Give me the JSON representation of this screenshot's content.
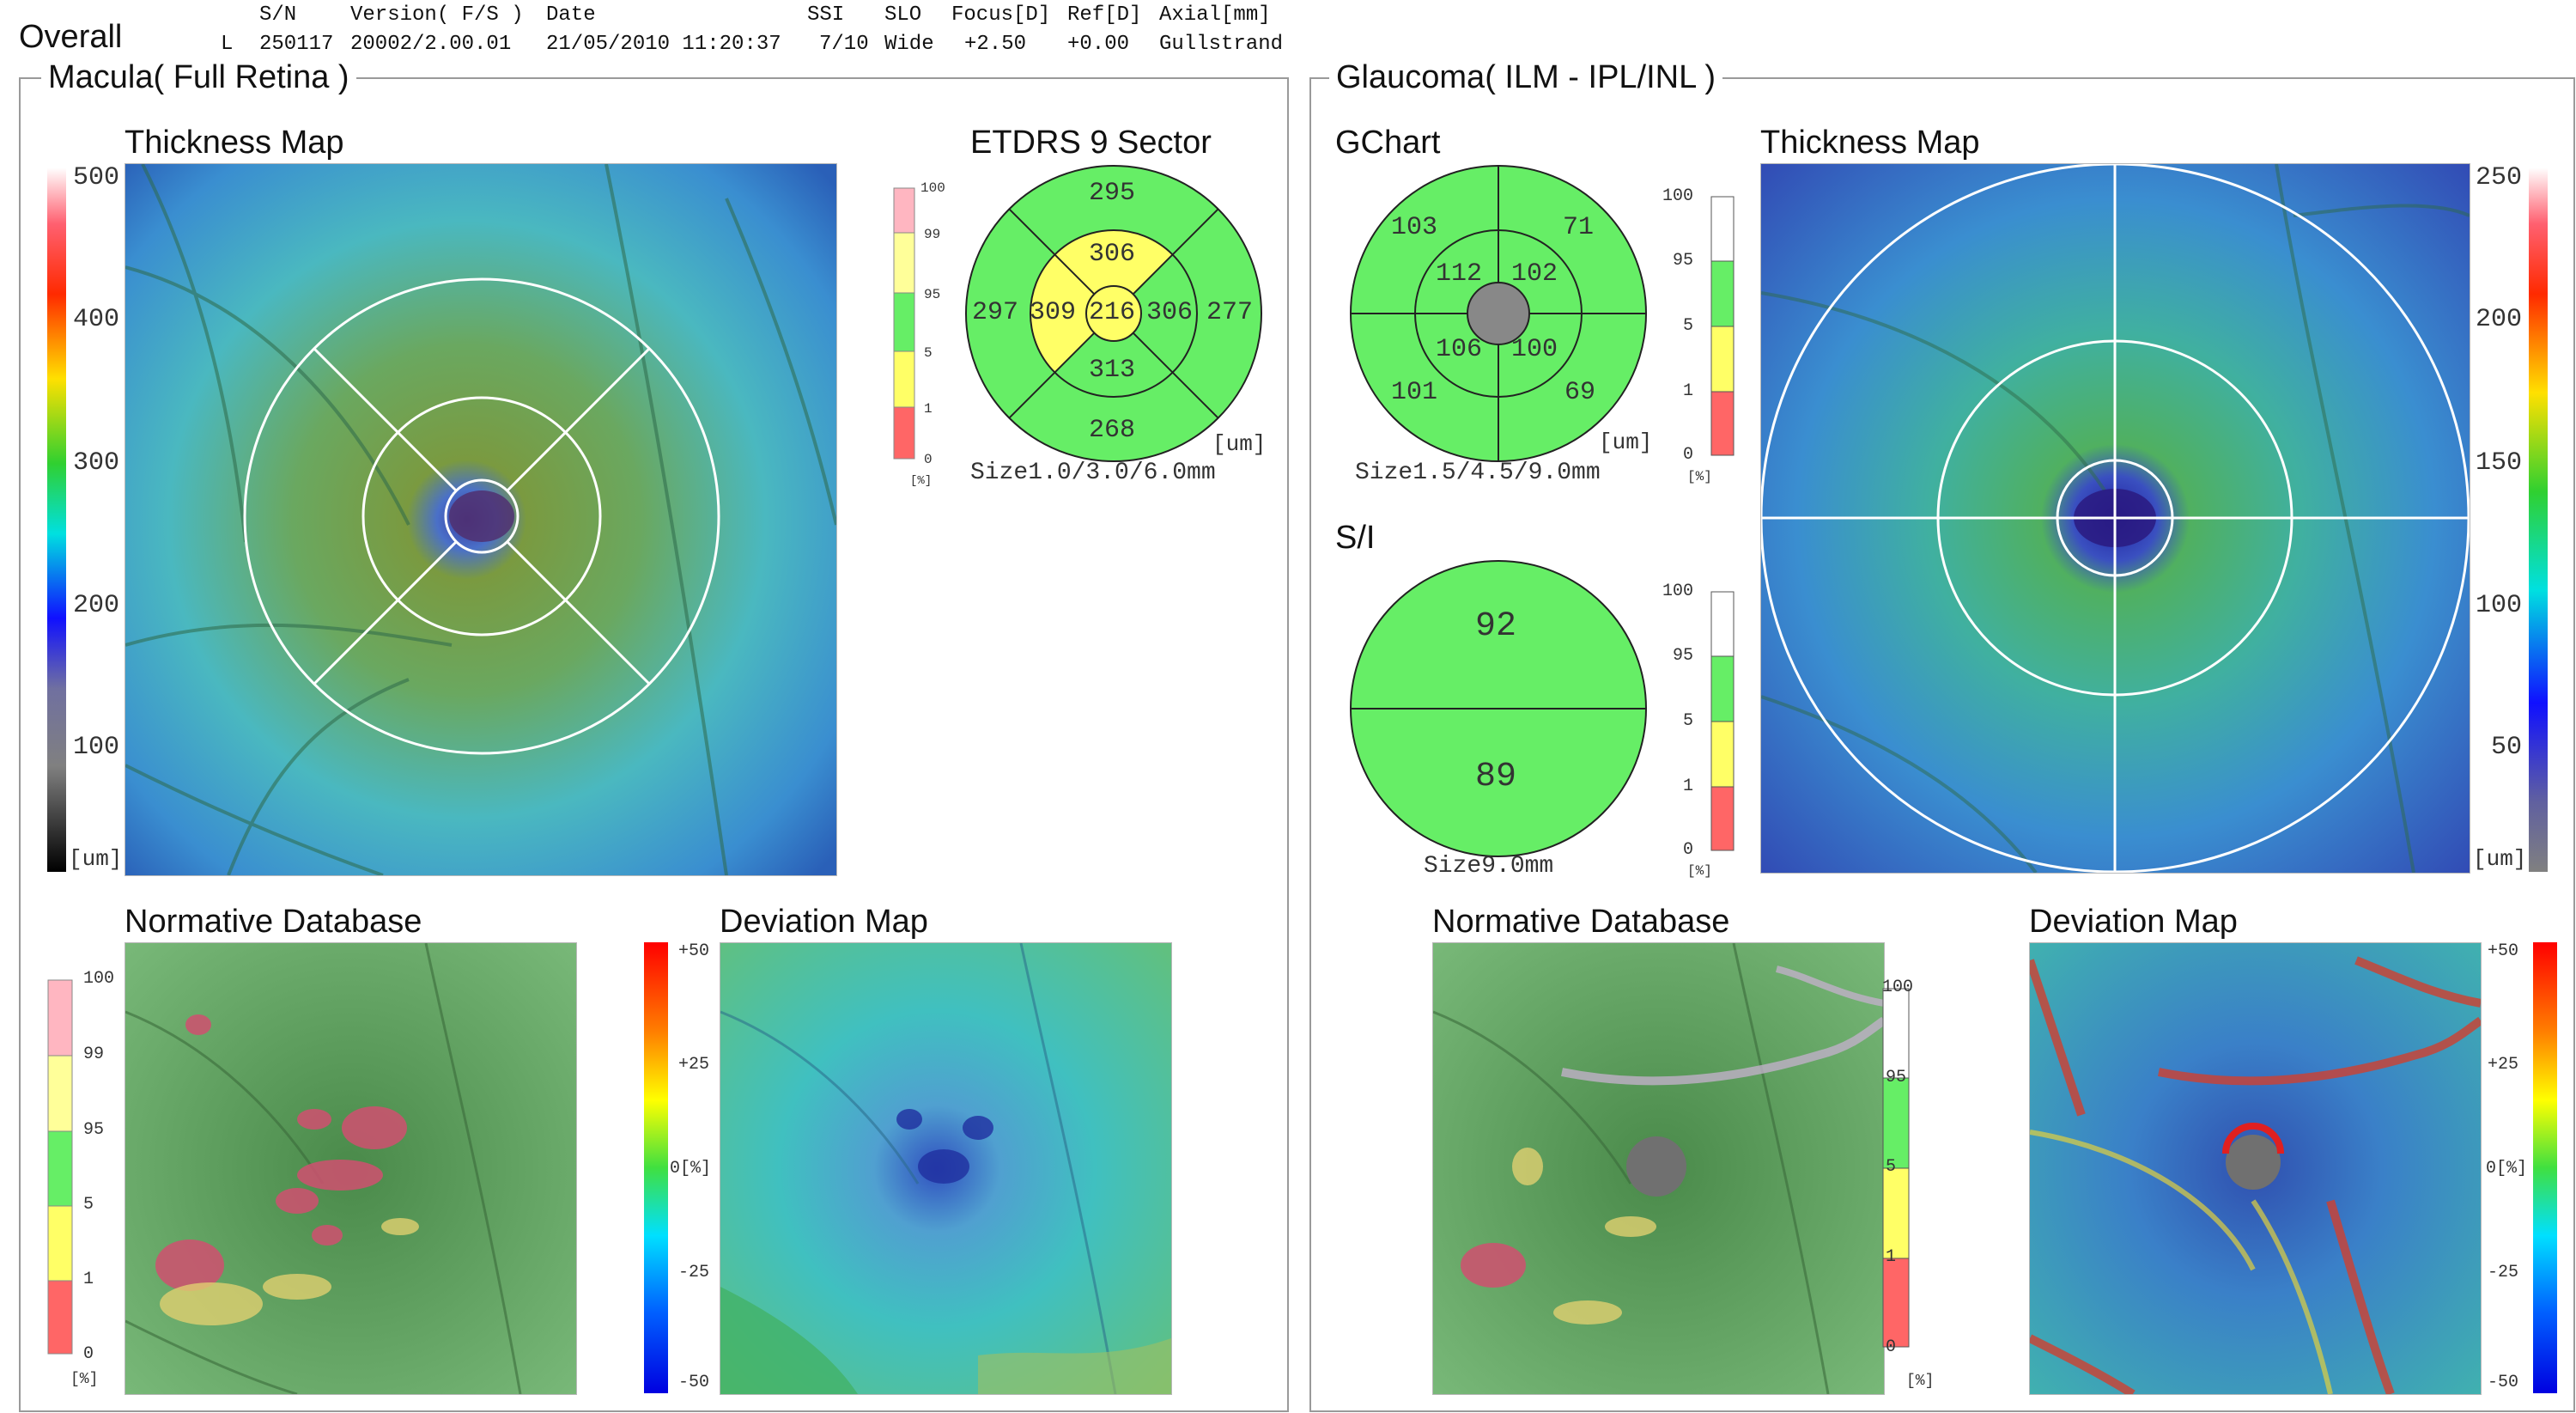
{
  "page": {
    "title": "Overall"
  },
  "header": {
    "columns": [
      "S/N",
      "Version( F/S )",
      "Date",
      "SSI",
      "SLO",
      "Focus[D]",
      "Ref[D]",
      "Axial[mm]"
    ],
    "eye": "L",
    "sn": "250117",
    "version": "20002/2.00.01",
    "date": "21/05/2010 11:20:37",
    "ssi": "7/10",
    "slo": "Wide",
    "focus": "+2.50",
    "ref": "+0.00",
    "axial": "Gullstrand"
  },
  "macula": {
    "title": "Macula( Full Retina )",
    "thickness_map": {
      "title": "Thickness Map",
      "scale_ticks": [
        "500",
        "400",
        "300",
        "200",
        "100"
      ],
      "unit": "[um]"
    },
    "etdrs": {
      "title": "ETDRS 9 Sector",
      "legend_ticks": [
        "100",
        "99",
        "95",
        "5",
        "1",
        "0"
      ],
      "legend_unit": "[%]",
      "values": {
        "outer_superior": "295",
        "outer_temporal": "297",
        "outer_nasal": "277",
        "outer_inferior": "268",
        "inner_superior": "306",
        "inner_temporal": "309",
        "inner_nasal": "306",
        "inner_inferior": "313",
        "center": "216"
      },
      "unit": "[um]",
      "size": "Size1.0/3.0/6.0mm"
    },
    "normative": {
      "title": "Normative Database",
      "legend_ticks": [
        "100",
        "99",
        "95",
        "5",
        "1",
        "0"
      ],
      "legend_unit": "[%]"
    },
    "deviation": {
      "title": "Deviation Map",
      "ticks": [
        "+50",
        "+25",
        "0[%]",
        "-25",
        "-50"
      ]
    }
  },
  "glaucoma": {
    "title": "Glaucoma( ILM - IPL/INL )",
    "gchart": {
      "title": "GChart",
      "values": {
        "outer_st": "103",
        "outer_sn": "71",
        "inner_st": "112",
        "inner_sn": "102",
        "inner_it": "106",
        "inner_in": "100",
        "outer_it": "101",
        "outer_in": "69"
      },
      "unit": "[um]",
      "size": "Size1.5/4.5/9.0mm",
      "legend_ticks": [
        "100",
        "95",
        "5",
        "1",
        "0"
      ],
      "legend_unit": "[%]"
    },
    "si": {
      "title": "S/I",
      "superior": "92",
      "inferior": "89",
      "size": "Size9.0mm",
      "legend_ticks": [
        "100",
        "95",
        "5",
        "1",
        "0"
      ],
      "legend_unit": "[%]"
    },
    "thickness_map": {
      "title": "Thickness Map",
      "scale_ticks": [
        "250",
        "200",
        "150",
        "100",
        "50"
      ],
      "unit": "[um]"
    },
    "normative": {
      "title": "Normative Database",
      "legend_ticks": [
        "100",
        "95",
        "5",
        "1",
        "0"
      ],
      "legend_unit": "[%]"
    },
    "deviation": {
      "title": "Deviation Map",
      "ticks": [
        "+50",
        "+25",
        "0[%]",
        "-25",
        "-50"
      ]
    }
  },
  "colors": {
    "normal_green": "#66ee66",
    "borderline_yellow": "#ffff66",
    "outside_red": "#ff6666",
    "high_pink": "#ffb6c1",
    "frame": "#9a9a9a"
  }
}
